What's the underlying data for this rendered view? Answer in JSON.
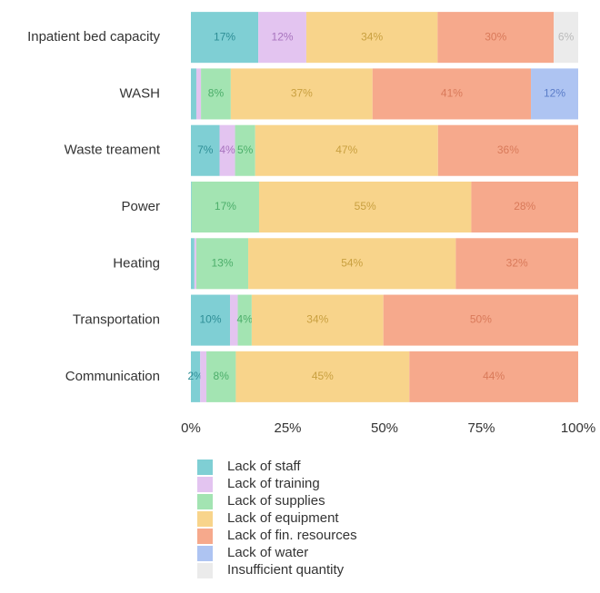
{
  "chart_data": {
    "type": "stacked_barh",
    "categories": [
      "Inpatient bed capacity",
      "WASH",
      "Waste treament",
      "Power",
      "Heating",
      "Transportation",
      "Communication"
    ],
    "series": [
      {
        "name": "Lack of staff",
        "color": "#7fcfd4",
        "label_color": "#2e8e96",
        "values": [
          17.4,
          1.4,
          7.4,
          0.2,
          0.9,
          10.1,
          2.4
        ],
        "value_labels": [
          "17%",
          null,
          "7%",
          null,
          null,
          "10%",
          "2%"
        ]
      },
      {
        "name": "Lack of training",
        "color": "#e3c4f0",
        "label_color": "#a874be",
        "values": [
          12.4,
          1.2,
          4.0,
          0,
          0.5,
          2.0,
          1.6
        ],
        "value_labels": [
          "12%",
          null,
          "4%",
          null,
          null,
          null,
          null
        ]
      },
      {
        "name": "Lack of supplies",
        "color": "#a3e4b2",
        "label_color": "#4cae6a",
        "values": [
          0,
          7.7,
          5.2,
          17.4,
          13.4,
          3.6,
          7.6
        ],
        "value_labels": [
          null,
          "8%",
          "5%",
          "17%",
          "13%",
          "4%",
          "8%"
        ]
      },
      {
        "name": "Lack of equipment",
        "color": "#f8d48b",
        "label_color": "#c9a040",
        "values": [
          33.9,
          36.6,
          47.2,
          54.8,
          53.6,
          34.0,
          44.8
        ],
        "value_labels": [
          "34%",
          "37%",
          "47%",
          "55%",
          "54%",
          "34%",
          "45%"
        ]
      },
      {
        "name": "Lack of fin. resources",
        "color": "#f6a98c",
        "label_color": "#d97a5a",
        "values": [
          30.0,
          40.9,
          36.2,
          27.6,
          31.6,
          50.3,
          43.6
        ],
        "value_labels": [
          "30%",
          "41%",
          "36%",
          "28%",
          "32%",
          "50%",
          "44%"
        ]
      },
      {
        "name": "Lack of water",
        "color": "#aec4f2",
        "label_color": "#5a7cc8",
        "values": [
          0,
          12.2,
          0,
          0,
          0,
          0,
          0
        ],
        "value_labels": [
          null,
          "12%",
          null,
          null,
          null,
          null,
          null
        ]
      },
      {
        "name": "Insufficient quantity",
        "color": "#ebebeb",
        "label_color": "#bbbbbb",
        "values": [
          6.3,
          0,
          0,
          0,
          0,
          0,
          0
        ],
        "value_labels": [
          "6%",
          null,
          null,
          null,
          null,
          null,
          null
        ]
      }
    ],
    "xlim": [
      0,
      100
    ],
    "xticks": [
      {
        "value": 0,
        "label": "0%"
      },
      {
        "value": 25,
        "label": "25%"
      },
      {
        "value": 50,
        "label": "50%"
      },
      {
        "value": 75,
        "label": "75%"
      },
      {
        "value": 100,
        "label": "100%"
      }
    ]
  }
}
